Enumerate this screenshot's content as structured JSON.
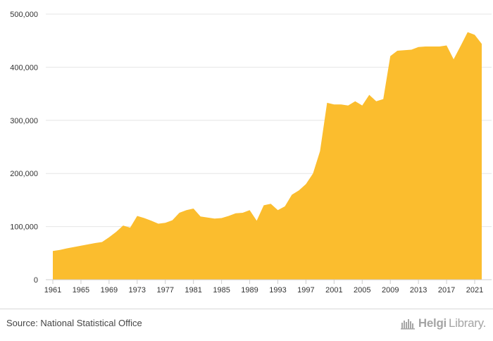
{
  "chart_data": {
    "type": "area",
    "x": [
      1961,
      1962,
      1963,
      1964,
      1965,
      1966,
      1967,
      1968,
      1969,
      1970,
      1971,
      1972,
      1973,
      1974,
      1975,
      1976,
      1977,
      1978,
      1979,
      1980,
      1981,
      1982,
      1983,
      1984,
      1985,
      1986,
      1987,
      1988,
      1989,
      1990,
      1991,
      1992,
      1993,
      1994,
      1995,
      1996,
      1997,
      1998,
      1999,
      2000,
      2001,
      2002,
      2003,
      2004,
      2005,
      2006,
      2007,
      2008,
      2009,
      2010,
      2011,
      2012,
      2013,
      2014,
      2015,
      2016,
      2017,
      2018,
      2019,
      2020,
      2021,
      2022
    ],
    "values": [
      54000,
      56000,
      59000,
      61500,
      64000,
      66500,
      69000,
      71000,
      80000,
      90000,
      102000,
      98000,
      120000,
      116000,
      111000,
      105500,
      107000,
      112000,
      126000,
      131000,
      134000,
      119000,
      117000,
      115000,
      116000,
      120000,
      125000,
      126000,
      131000,
      111000,
      140000,
      143000,
      131000,
      138000,
      160000,
      168000,
      180000,
      200000,
      242000,
      333000,
      330000,
      330000,
      328000,
      336000,
      328000,
      348000,
      336000,
      340000,
      421000,
      431000,
      432000,
      433000,
      438000,
      439000,
      439000,
      439000,
      441000,
      415000,
      440000,
      466000,
      461000,
      444000
    ],
    "xticks": [
      "1961",
      "1965",
      "1969",
      "1973",
      "1977",
      "1981",
      "1985",
      "1989",
      "1993",
      "1997",
      "2001",
      "2005",
      "2009",
      "2013",
      "2017",
      "2021"
    ],
    "ylim": [
      0,
      500000
    ],
    "yticks": [
      "0",
      "100,000",
      "200,000",
      "300,000",
      "400,000",
      "500,000"
    ],
    "ytick_values": [
      0,
      100000,
      200000,
      300000,
      400000,
      500000
    ],
    "grid": true,
    "fill_color": "#fbbd2e"
  },
  "footer": {
    "source": "Source: National Statistical Office",
    "brand_bold": "Helgi",
    "brand_rest": "Library."
  }
}
